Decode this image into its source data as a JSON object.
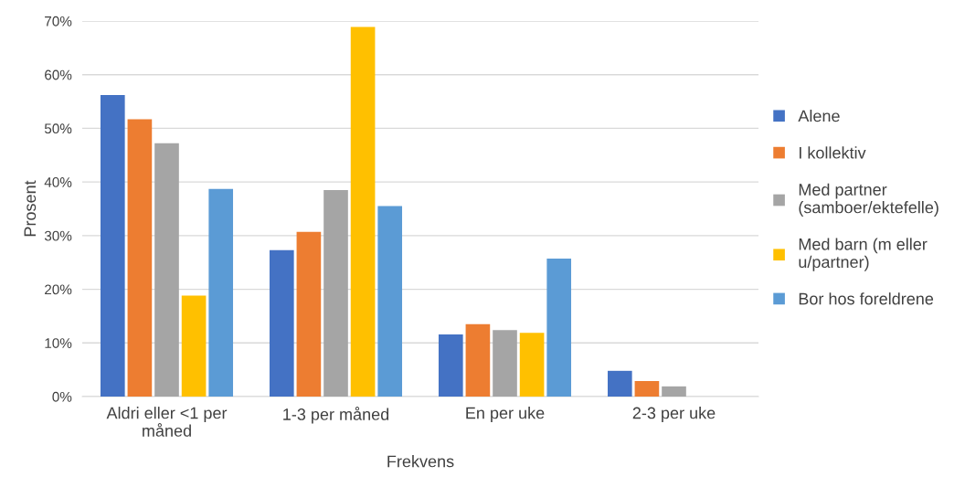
{
  "chart_data": {
    "type": "bar",
    "xlabel": "Frekvens",
    "ylabel": "Prosent",
    "categories": [
      "Aldri eller <1 per\nmåned",
      "1-3 per måned",
      "En per uke",
      "2-3 per uke"
    ],
    "series": [
      {
        "name": "Alene",
        "color": "#4472c4",
        "values": [
          56.2,
          27.3,
          11.6,
          4.8
        ]
      },
      {
        "name": "I kollektiv",
        "color": "#ed7d31",
        "values": [
          51.7,
          30.7,
          13.5,
          2.9
        ]
      },
      {
        "name": "Med partner\n(samboer/ektefelle)",
        "color": "#a5a5a5",
        "values": [
          47.2,
          38.5,
          12.4,
          1.9
        ]
      },
      {
        "name": "Med barn (m eller\nu/partner)",
        "color": "#ffc000",
        "values": [
          18.8,
          68.9,
          11.9,
          null
        ]
      },
      {
        "name": "Bor hos foreldrene",
        "color": "#5b9bd5",
        "values": [
          38.7,
          35.5,
          25.7,
          null
        ]
      }
    ],
    "ylim": [
      0,
      70
    ],
    "yticks": [
      {
        "value": 0,
        "label": "0%"
      },
      {
        "value": 10,
        "label": "10%"
      },
      {
        "value": 20,
        "label": "20%"
      },
      {
        "value": 30,
        "label": "30%"
      },
      {
        "value": 40,
        "label": "40%"
      },
      {
        "value": 50,
        "label": "50%"
      },
      {
        "value": 60,
        "label": "60%"
      },
      {
        "value": 70,
        "label": "70%"
      }
    ],
    "grid": "y",
    "legend": "right"
  }
}
